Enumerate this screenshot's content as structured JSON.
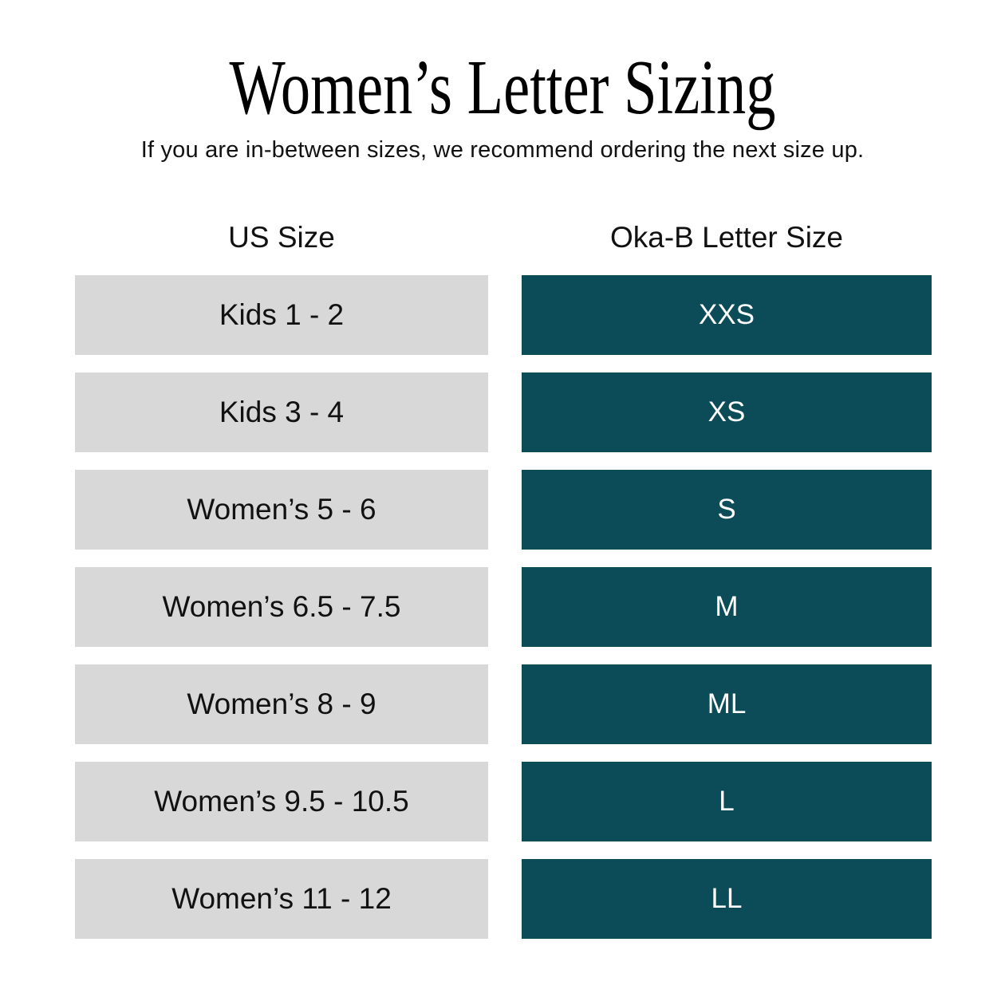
{
  "page": {
    "title": "Women’s Letter Sizing",
    "subtitle": "If you are in-between sizes, we recommend ordering the next size up."
  },
  "table": {
    "columns": [
      {
        "label": "US Size"
      },
      {
        "label": "Oka-B Letter Size"
      }
    ],
    "rows": [
      {
        "us": "Kids 1 - 2",
        "letter": "XXS"
      },
      {
        "us": "Kids 3 - 4",
        "letter": "XS"
      },
      {
        "us": "Women’s 5 - 6",
        "letter": "S"
      },
      {
        "us": "Women’s 6.5 - 7.5",
        "letter": "M"
      },
      {
        "us": "Women’s 8 - 9",
        "letter": "ML"
      },
      {
        "us": "Women’s 9.5 - 10.5",
        "letter": "L"
      },
      {
        "us": "Women’s 11 - 12",
        "letter": "LL"
      }
    ]
  },
  "colors": {
    "background": "#ffffff",
    "us_cell_bg": "#d8d8d8",
    "letter_cell_bg": "#0b4c58",
    "us_cell_text": "#111111",
    "letter_cell_text": "#ffffff",
    "title_text": "#000000"
  },
  "chart_data": {
    "type": "table",
    "title": "Women’s Letter Sizing",
    "subtitle": "If you are in-between sizes, we recommend ordering the next size up.",
    "columns": [
      "US Size",
      "Oka-B Letter Size"
    ],
    "rows": [
      [
        "Kids 1 - 2",
        "XXS"
      ],
      [
        "Kids 3 - 4",
        "XS"
      ],
      [
        "Women’s 5 - 6",
        "S"
      ],
      [
        "Women’s 6.5 - 7.5",
        "M"
      ],
      [
        "Women’s 8 - 9",
        "ML"
      ],
      [
        "Women’s 9.5 - 10.5",
        "L"
      ],
      [
        "Women’s 11 - 12",
        "LL"
      ]
    ],
    "legend_position": "none",
    "grid": false
  }
}
